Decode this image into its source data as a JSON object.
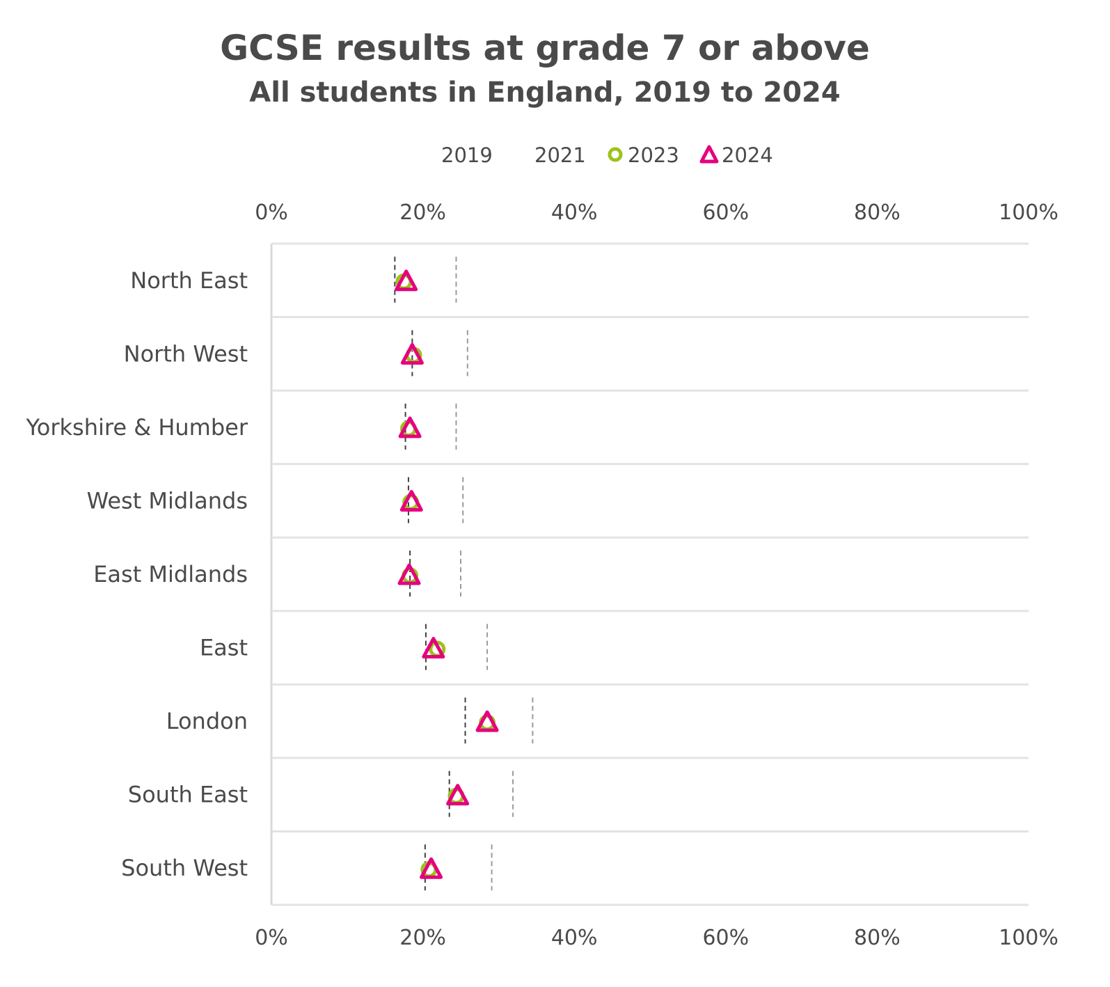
{
  "chart_data": {
    "type": "dot-plot",
    "title": "GCSE results at grade 7 or above",
    "subtitle": "All students in England, 2019 to 2024",
    "xlim": [
      0,
      100
    ],
    "x_ticks": [
      "0%",
      "20%",
      "40%",
      "60%",
      "80%",
      "100%"
    ],
    "x_tick_values": [
      0,
      20,
      40,
      60,
      80,
      100
    ],
    "x_axis_positions": [
      "top",
      "bottom"
    ],
    "grid": "horizontal row separators",
    "legend_position": "top",
    "categories": [
      "North East",
      "North West",
      "Yorkshire & Humber",
      "West Midlands",
      "East Midlands",
      "East",
      "London",
      "South East",
      "South West"
    ],
    "series": [
      {
        "name": "2019",
        "marker": "dashed-line",
        "color": "#404040",
        "values": [
          16.3,
          18.6,
          17.7,
          18.1,
          18.3,
          20.4,
          25.6,
          23.5,
          20.3
        ]
      },
      {
        "name": "2021",
        "marker": "dashed-line",
        "color": "#9a9a9a",
        "values": [
          24.4,
          25.9,
          24.4,
          25.3,
          25.0,
          28.5,
          34.5,
          31.9,
          29.1
        ]
      },
      {
        "name": "2023",
        "marker": "circle",
        "color": "#9bc31c",
        "values": [
          17.5,
          18.8,
          18.1,
          18.4,
          18.3,
          21.9,
          28.5,
          24.4,
          20.8
        ]
      },
      {
        "name": "2024",
        "marker": "triangle",
        "color": "#e6007e",
        "values": [
          17.8,
          18.6,
          18.3,
          18.5,
          18.2,
          21.4,
          28.5,
          24.6,
          21.1
        ]
      }
    ]
  }
}
